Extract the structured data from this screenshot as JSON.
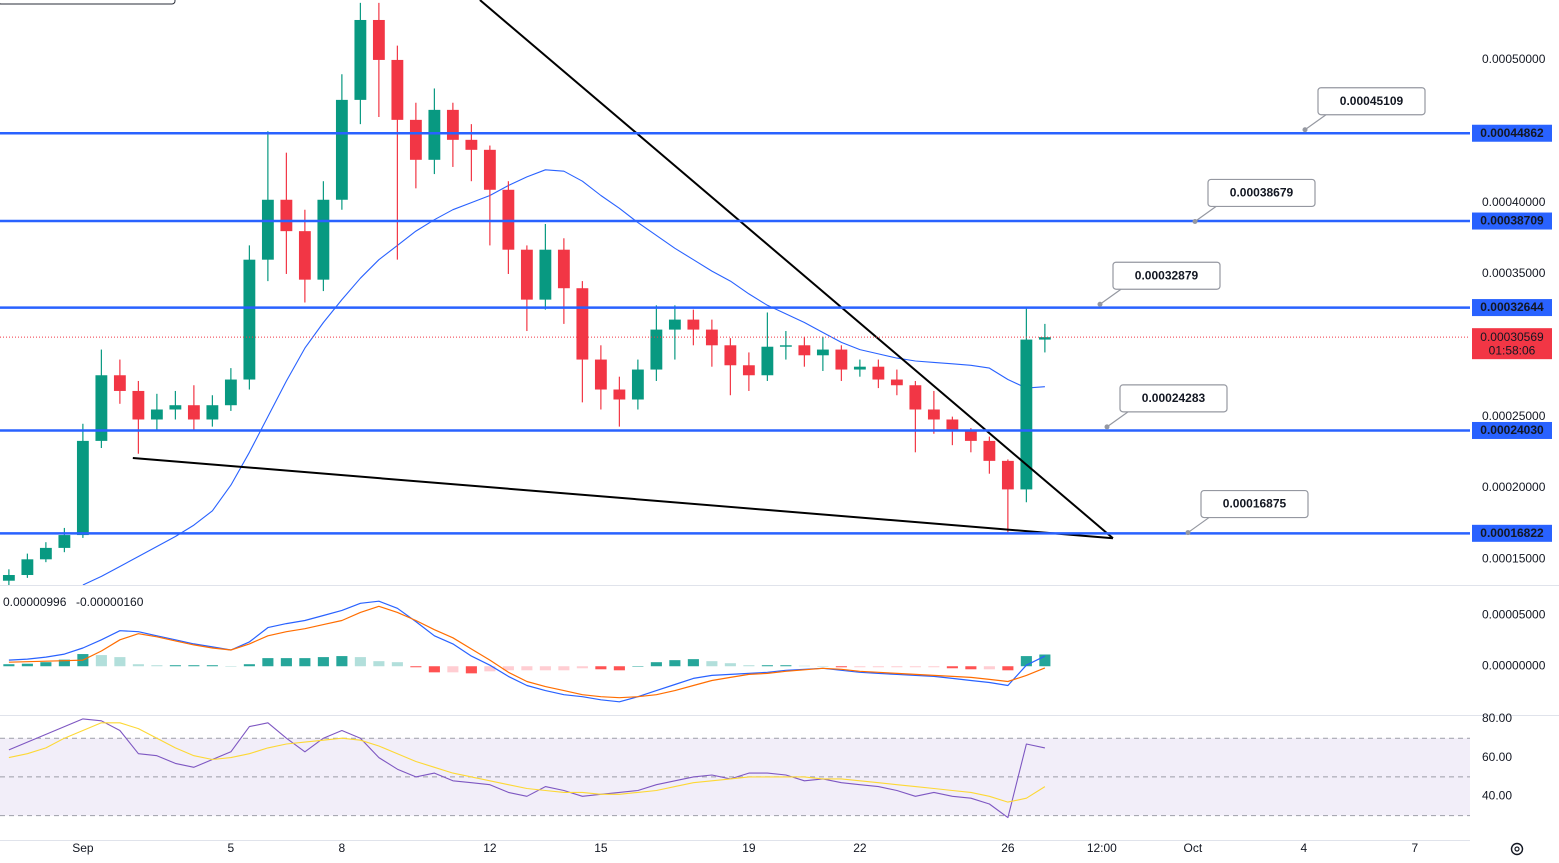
{
  "chart_data": [
    {
      "type": "candlestick",
      "x": [
        -1,
        -0.5,
        0,
        0.5,
        1,
        1.5,
        2,
        2.5,
        3,
        3.5,
        4,
        4.5,
        5,
        5.5,
        6,
        6.5,
        7,
        7.5,
        8,
        8.5,
        9,
        9.5,
        10,
        10.5,
        11,
        11.5,
        12,
        12.5,
        13,
        13.5,
        14,
        14.5,
        15,
        15.5,
        16,
        16.5,
        17,
        17.5,
        18,
        18.5,
        19,
        19.5,
        20,
        20.5,
        21,
        21.5,
        22,
        22.5,
        23,
        23.5,
        24,
        24.5,
        25,
        25.5,
        26,
        26.5,
        27
      ],
      "open": [
        0.000135,
        0.000139,
        0.00015,
        0.000158,
        0.000167,
        0.000233,
        0.000279,
        0.000268,
        0.000248,
        0.000255,
        0.000258,
        0.000248,
        0.000258,
        0.000276,
        0.00036,
        0.000402,
        0.00038,
        0.000346,
        0.000402,
        0.000472,
        0.000528,
        0.0005,
        0.000458,
        0.00043,
        0.000465,
        0.000444,
        0.000437,
        0.000409,
        0.000367,
        0.000332,
        0.000367,
        0.00034,
        0.00029,
        0.000269,
        0.000262,
        0.000283,
        0.000311,
        0.000318,
        0.000311,
        0.0003,
        0.000286,
        0.000279,
        0.000299,
        0.0003,
        0.000293,
        0.000297,
        0.000283,
        0.000285,
        0.000276,
        0.000272,
        0.000255,
        0.000248,
        0.00024,
        0.000233,
        0.000219,
        0.000199,
        0.000304
      ],
      "high": [
        0.000143,
        0.000154,
        0.000162,
        0.000172,
        0.000245,
        0.000297,
        0.00029,
        0.000275,
        0.000266,
        0.000268,
        0.000272,
        0.000265,
        0.000284,
        0.00037,
        0.00045,
        0.000435,
        0.000395,
        0.000415,
        0.00049,
        0.00054,
        0.00054,
        0.00051,
        0.00047,
        0.00048,
        0.00047,
        0.000455,
        0.00044,
        0.000415,
        0.00037,
        0.000385,
        0.000375,
        0.000345,
        0.0003,
        0.000278,
        0.00029,
        0.000328,
        0.000328,
        0.000325,
        0.000318,
        0.000305,
        0.000295,
        0.000323,
        0.00031,
        0.000306,
        0.000306,
        0.0003,
        0.00029,
        0.00029,
        0.000283,
        0.000275,
        0.000268,
        0.00025,
        0.000242,
        0.000236,
        0.00022,
        0.000327,
        0.000315
      ],
      "low": [
        0.000132,
        0.000137,
        0.000148,
        0.000155,
        0.000165,
        0.000228,
        0.000259,
        0.000224,
        0.00024,
        0.000248,
        0.00024,
        0.000243,
        0.000254,
        0.000269,
        0.000345,
        0.00035,
        0.00033,
        0.000338,
        0.000395,
        0.000455,
        0.00046,
        0.00036,
        0.00041,
        0.00042,
        0.000425,
        0.000415,
        0.00037,
        0.00035,
        0.00031,
        0.000325,
        0.000315,
        0.00026,
        0.000255,
        0.000243,
        0.000255,
        0.000275,
        0.00029,
        0.0003,
        0.000285,
        0.000265,
        0.000268,
        0.000275,
        0.00029,
        0.000285,
        0.000282,
        0.000275,
        0.000278,
        0.00027,
        0.000265,
        0.000225,
        0.000238,
        0.00023,
        0.000225,
        0.00021,
        0.000169,
        0.00019,
        0.000295
      ],
      "close": [
        0.000139,
        0.00015,
        0.000158,
        0.000167,
        0.000233,
        0.000279,
        0.000268,
        0.000248,
        0.000255,
        0.000258,
        0.000248,
        0.000258,
        0.000276,
        0.00036,
        0.000402,
        0.00038,
        0.000346,
        0.000402,
        0.000472,
        0.000528,
        0.0005,
        0.000458,
        0.00043,
        0.000465,
        0.000444,
        0.000437,
        0.000409,
        0.000367,
        0.000332,
        0.000367,
        0.00034,
        0.00029,
        0.000269,
        0.000262,
        0.000283,
        0.000311,
        0.000318,
        0.000311,
        0.0003,
        0.000286,
        0.000279,
        0.000299,
        0.0003,
        0.000293,
        0.000297,
        0.000283,
        0.000285,
        0.000276,
        0.000272,
        0.000255,
        0.000248,
        0.00024,
        0.000233,
        0.000219,
        0.000199,
        0.000304,
        0.00030569
      ],
      "up_color": "#089981",
      "down_color": "#f23645",
      "overlay": {
        "color": "#2962ff",
        "values": [
          null,
          null,
          null,
          null,
          0.000132,
          0.000138,
          0.000145,
          0.000152,
          0.000159,
          0.000166,
          0.000174,
          0.000184,
          0.000202,
          0.000225,
          0.00025,
          0.000275,
          0.000298,
          0.000316,
          0.000332,
          0.000347,
          0.00036,
          0.00037,
          0.00038,
          0.000388,
          0.000395,
          0.0004,
          0.000405,
          0.000412,
          0.000418,
          0.000423,
          0.000422,
          0.000415,
          0.000405,
          0.000396,
          0.000386,
          0.000377,
          0.000368,
          0.00036,
          0.000352,
          0.000345,
          0.000336,
          0.000328,
          0.000322,
          0.000316,
          0.000309,
          0.000302,
          0.000297,
          0.000294,
          0.000291,
          0.000289,
          0.000288,
          0.000287,
          0.000286,
          0.000284,
          0.000276,
          0.00027,
          0.000271
        ]
      },
      "levels": [
        0.00044862,
        0.00038709,
        0.00032644,
        {
          "value": 0.0002403,
          "label": "0.00024030"
        },
        0.00016822
      ],
      "level_color": "#2962ff",
      "annotations": [
        0.00045109,
        0.00038679,
        0.00032879,
        0.00024283,
        0.00016875
      ],
      "trendlines": [
        {
          "x": [
            11.73,
            28.84
          ],
          "y": [
            0.000542,
            0.0001648
          ]
        },
        {
          "x": [
            2.35,
            28.84
          ],
          "y": [
            0.000221,
            0.0001648
          ]
        }
      ],
      "last_price": 0.00030569,
      "last_color": "#f23645",
      "countdown": "01:58:06",
      "ylim": [
        0.000132,
        0.000542
      ],
      "yticks": [
        {
          "value": 0.0005,
          "label": "0.00050000"
        },
        {
          "value": 0.0004,
          "label": "0.00040000"
        },
        {
          "value": 0.00035,
          "label": "0.00035000"
        },
        {
          "value": 0.00025,
          "label": "0.00025000"
        },
        {
          "value": 0.0002,
          "label": "0.00020000"
        },
        {
          "value": 0.00015,
          "label": "0.00015000"
        }
      ],
      "xlim": [
        -1.24,
        38.49
      ],
      "xticks": [
        {
          "value": 1,
          "label": "Sep"
        },
        5,
        8,
        12,
        15,
        19,
        22,
        26,
        {
          "value": 28.54,
          "label": "12:00"
        },
        {
          "value": 31,
          "label": "Oct"
        },
        {
          "value": 34,
          "label": "4"
        },
        {
          "value": 37,
          "label": "7"
        }
      ]
    },
    {
      "type": "macd",
      "readings": [
        "0.00000996",
        "-0.00000160"
      ],
      "series": [
        {
          "color": "#2962ff",
          "values": [
            6e-06,
            7e-06,
            9e-06,
            1.2e-05,
            1.8e-05,
            2.6e-05,
            3.5e-05,
            3.4e-05,
            3e-05,
            2.6e-05,
            2.2e-05,
            1.9e-05,
            1.6e-05,
            2.4e-05,
            3.8e-05,
            4.2e-05,
            4.5e-05,
            5e-05,
            5.5e-05,
            6.2e-05,
            6.4e-05,
            5.7e-05,
            4.4e-05,
            3e-05,
            2.2e-05,
            1e-05,
            1e-06,
            -1e-05,
            -1.9e-05,
            -2.4e-05,
            -2.8e-05,
            -3e-05,
            -3.3e-05,
            -3.5e-05,
            -3e-05,
            -2.4e-05,
            -1.8e-05,
            -1.2e-05,
            -9e-06,
            -8e-06,
            -7e-06,
            -6e-06,
            -4e-06,
            -3e-06,
            -2e-06,
            -4e-06,
            -6e-06,
            -7e-06,
            -8e-06,
            -9e-06,
            -1e-05,
            -1.2e-05,
            -1.4e-05,
            -1.6e-05,
            -1.9e-05,
            1e-06,
            9.96e-06
          ]
        },
        {
          "color": "#ff6d00",
          "values": [
            4e-06,
            4.5e-06,
            5e-06,
            5.5e-06,
            6e-06,
            1.5e-05,
            2.6e-05,
            3.2e-05,
            2.9e-05,
            2.5e-05,
            2.1e-05,
            1.8e-05,
            1.6e-05,
            2.2e-05,
            3e-05,
            3.4e-05,
            3.7e-05,
            4.1e-05,
            4.5e-05,
            5.3e-05,
            5.9e-05,
            5.3e-05,
            4.5e-05,
            3.6e-05,
            2.8e-05,
            1.7e-05,
            6e-06,
            -6e-06,
            -1.5e-05,
            -2e-05,
            -2.4e-05,
            -2.8e-05,
            -3e-05,
            -3.1e-05,
            -3e-05,
            -2.8e-05,
            -2.4e-05,
            -1.9e-05,
            -1.4e-05,
            -1.1e-05,
            -8e-06,
            -7e-06,
            -5e-06,
            -3.5e-06,
            -2e-06,
            -3e-06,
            -5e-06,
            -6e-06,
            -7e-06,
            -8e-06,
            -9e-06,
            -1e-05,
            -1.1e-05,
            -1.3e-05,
            -1.5e-05,
            -9e-06,
            -1.6e-06
          ]
        }
      ],
      "histogram": [
        2e-06,
        2.5e-06,
        4e-06,
        6.5e-06,
        1.2e-05,
        1.1e-05,
        9e-06,
        2e-06,
        1e-06,
        1e-06,
        1e-06,
        1e-06,
        0,
        2e-06,
        8e-06,
        8e-06,
        8e-06,
        9e-06,
        1e-05,
        9e-06,
        5e-06,
        4e-06,
        -1e-06,
        -6e-06,
        -6e-06,
        -7e-06,
        -5e-06,
        -4e-06,
        -4e-06,
        -4e-06,
        -4e-06,
        -2e-06,
        -3e-06,
        -4e-06,
        0,
        4e-06,
        6e-06,
        7e-06,
        5e-06,
        3e-06,
        1e-06,
        1e-06,
        1e-06,
        5e-07,
        0,
        -1e-06,
        -1e-06,
        -1e-06,
        -1e-06,
        -1e-06,
        -1e-06,
        -2e-06,
        -3e-06,
        -3e-06,
        -4e-06,
        1e-05,
        1.156e-05
      ],
      "histogram_colors": [
        "#26a69a",
        "#b2dfdb",
        "#ffcdd2",
        "#ff5252"
      ],
      "ylim": [
        -4.8e-05,
        7.9e-05
      ],
      "yticks": [
        {
          "value": 5e-05,
          "label": "0.00005000"
        },
        {
          "value": 0,
          "label": "0.00000000"
        }
      ]
    },
    {
      "type": "rsi",
      "series": [
        {
          "color": "#7e57c2",
          "values": [
            64,
            68,
            72,
            76,
            80,
            79,
            74,
            62,
            61,
            57,
            55,
            59,
            63,
            76,
            78,
            70,
            63,
            70,
            74,
            70,
            60,
            54,
            50,
            52,
            48,
            47,
            46,
            42,
            40,
            45,
            43,
            40,
            41,
            42,
            43,
            46,
            48,
            50,
            51,
            49,
            52,
            52,
            51,
            48,
            49,
            47,
            46,
            45,
            43,
            40,
            42,
            40,
            39,
            36,
            29,
            67,
            65
          ]
        },
        {
          "color": "#fdd835",
          "values": [
            60,
            62,
            65,
            70,
            74,
            78,
            78,
            75,
            70,
            65,
            61,
            59,
            60,
            62,
            65,
            67,
            68,
            69,
            70,
            69,
            66,
            62,
            58,
            55,
            52,
            50,
            48,
            46,
            44,
            43,
            42,
            42,
            41,
            41,
            42,
            43,
            45,
            47,
            48,
            49,
            50,
            50,
            50,
            50,
            49,
            49,
            48,
            47,
            46,
            45,
            44,
            43,
            42,
            40,
            37,
            39,
            45
          ]
        }
      ],
      "bands": [
        30,
        70
      ],
      "midline": 50,
      "band_color": "#7e57c2",
      "ylim": [
        17.4,
        81.5
      ],
      "yticks": [
        {
          "value": 80,
          "label": "80.00"
        },
        {
          "value": 60,
          "label": "60.00"
        },
        {
          "value": 40,
          "label": "40.00"
        }
      ]
    }
  ]
}
